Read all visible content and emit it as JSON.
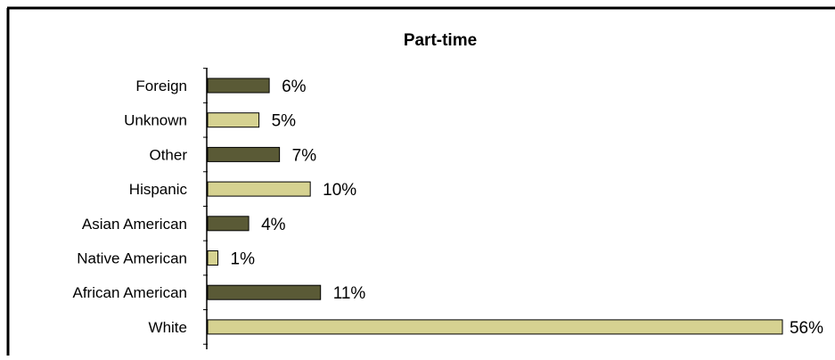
{
  "chart_data": {
    "type": "bar",
    "orientation": "horizontal",
    "title": "Part-time",
    "xlabel": "",
    "ylabel": "",
    "xlim": [
      0,
      56
    ],
    "categories": [
      "Foreign",
      "Unknown",
      "Other",
      "Hispanic",
      "Asian American",
      "Native American",
      "African American",
      "White"
    ],
    "values": [
      6,
      5,
      7,
      10,
      4,
      1,
      11,
      56
    ],
    "value_labels": [
      "6%",
      "5%",
      "7%",
      "10%",
      "4%",
      "1%",
      "11%",
      "56%"
    ],
    "bar_colors": [
      "#5a5a36",
      "#d6d291",
      "#5a5a36",
      "#d6d291",
      "#5a5a36",
      "#d6d291",
      "#5a5a36",
      "#d6d291"
    ],
    "grid": false,
    "legend": "none"
  }
}
